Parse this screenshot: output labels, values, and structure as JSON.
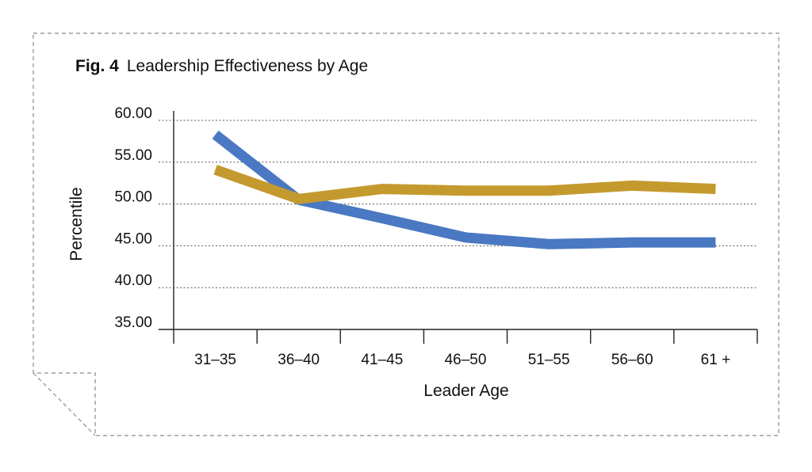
{
  "figure": {
    "number": "Fig. 4",
    "title": "Leadership Effectiveness by Age"
  },
  "chart_data": {
    "type": "line",
    "title": "Leadership Effectiveness by Age",
    "xlabel": "Leader Age",
    "ylabel": "Percentile",
    "categories": [
      "31–35",
      "36–40",
      "41–45",
      "46–50",
      "51–55",
      "56–60",
      "61 +"
    ],
    "ylim": [
      35,
      60
    ],
    "yticks": [
      "60.00",
      "55.00",
      "50.00",
      "45.00",
      "40.00",
      "35.00"
    ],
    "grid": "horizontal dotted",
    "series": [
      {
        "color": "#4a78c2",
        "values": [
          58.3,
          50.5,
          48.3,
          46.0,
          45.2,
          45.4,
          45.4
        ]
      },
      {
        "color": "#c49a2e",
        "values": [
          54.1,
          50.6,
          51.8,
          51.6,
          51.6,
          52.2,
          51.8
        ]
      }
    ]
  }
}
